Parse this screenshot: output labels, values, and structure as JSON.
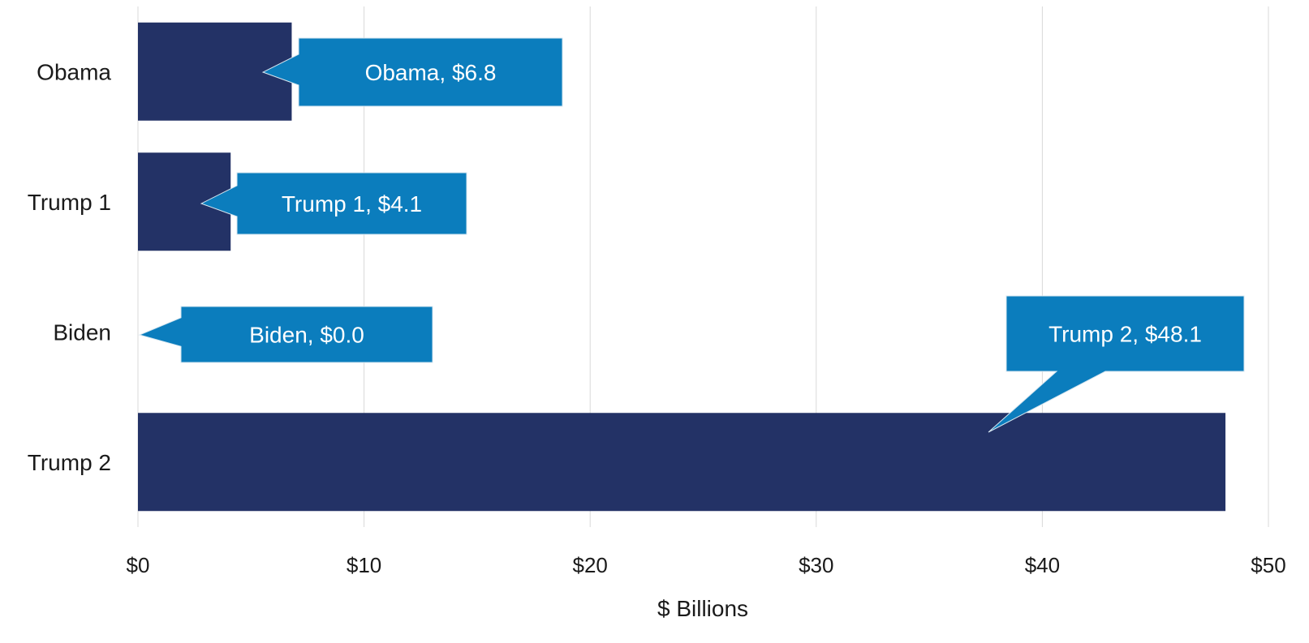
{
  "chart_data": {
    "type": "bar",
    "orientation": "horizontal",
    "categories": [
      "Obama",
      "Trump 1",
      "Biden",
      "Trump 2"
    ],
    "values": [
      6.8,
      4.1,
      0.0,
      48.1
    ],
    "data_labels": [
      "Obama, $6.8",
      "Trump 1, $4.1",
      "Biden, $0.0",
      "Trump 2, $48.1"
    ],
    "xlabel": "$ Billions",
    "ylabel": "",
    "xlim": [
      0,
      50
    ],
    "xticks": [
      0,
      10,
      20,
      30,
      40,
      50
    ],
    "xtick_labels": [
      "$0",
      "$10",
      "$20",
      "$30",
      "$40",
      "$50"
    ],
    "grid": true,
    "legend": "none",
    "colors": {
      "bar": "#233266",
      "callout": "#0b7dbd",
      "callout_text": "#ffffff",
      "grid": "#d9d9d9",
      "text": "#1a1a1a"
    }
  }
}
